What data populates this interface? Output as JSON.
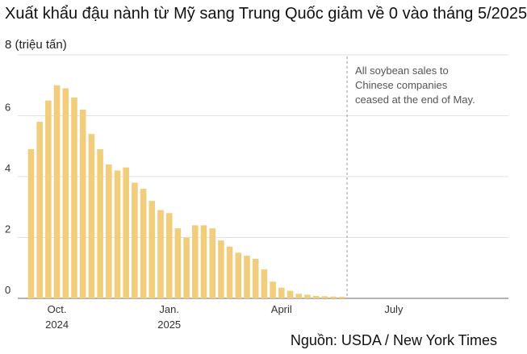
{
  "title": "Xuất khẩu đậu nành từ Mỹ sang Trung Quốc giảm về 0 vào tháng 5/2025",
  "source": "Nguồn: USDA / New York Times",
  "chart_data": {
    "type": "bar",
    "title": "Xuất khẩu đậu nành từ Mỹ sang Trung Quốc giảm về 0 vào tháng 5/2025",
    "unit_label": "8 (triệu tấn)",
    "ylim": [
      0,
      8
    ],
    "y_ticks": [
      0,
      2,
      4,
      6,
      8
    ],
    "grid": true,
    "bar_color": "#f2cd7c",
    "values": [
      4.9,
      5.8,
      6.5,
      7.0,
      6.9,
      6.6,
      6.2,
      5.4,
      4.9,
      4.4,
      4.2,
      4.3,
      3.8,
      3.6,
      3.2,
      2.9,
      2.8,
      2.3,
      2.0,
      2.4,
      2.4,
      2.3,
      1.9,
      1.7,
      1.5,
      1.4,
      1.3,
      0.95,
      0.55,
      0.35,
      0.25,
      0.15,
      0.12,
      0.08,
      0.07,
      0.06,
      0.05
    ],
    "x_ticks": [
      {
        "index": 3,
        "line1": "Oct.",
        "line2": "2024"
      },
      {
        "index": 16,
        "line1": "Jan.",
        "line2": "2025"
      },
      {
        "index": 29,
        "line1": "April",
        "line2": ""
      },
      {
        "index": 42,
        "line1": "July",
        "line2": ""
      }
    ],
    "empty_weeks": 13,
    "marker_index": 37,
    "annotation": [
      "All soybean sales to",
      "Chinese companies",
      "ceased at the end of May."
    ]
  }
}
